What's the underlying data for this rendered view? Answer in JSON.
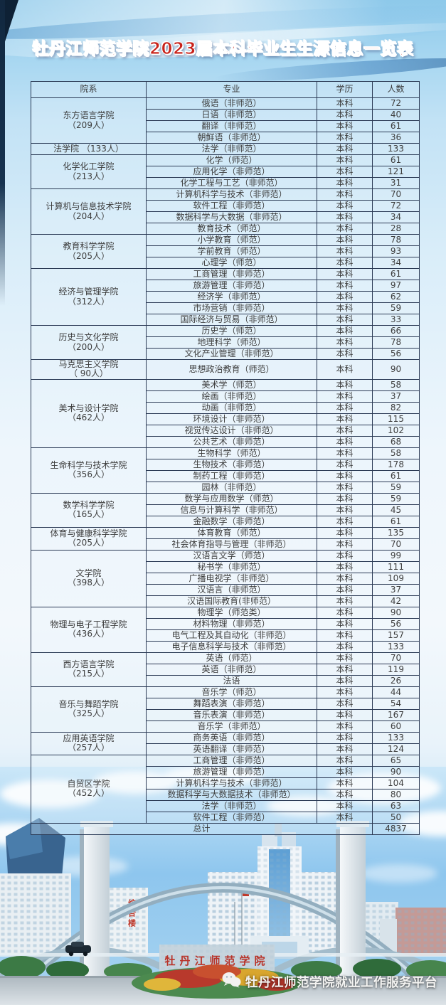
{
  "title": "牡丹江师范学院2023届本科毕业生生源信息一览表",
  "table": {
    "type": "table",
    "columns": [
      "院系",
      "专业",
      "学历",
      "人数"
    ],
    "groups": [
      {
        "dept": "东方语言学院",
        "count": "（209人）",
        "rows": [
          [
            "俄语（非师范）",
            "本科",
            "72"
          ],
          [
            "日语（非师范）",
            "本科",
            "40"
          ],
          [
            "翻译（非师范）",
            "本科",
            "61"
          ],
          [
            "朝鲜语（非师范）",
            "本科",
            "36"
          ]
        ]
      },
      {
        "dept": "法学院 （133人）",
        "count": "",
        "rows": [
          [
            "法学（非师范）",
            "本科",
            "133"
          ]
        ]
      },
      {
        "dept": "化学化工学院",
        "count": "（213人）",
        "rows": [
          [
            "化学（师范）",
            "本科",
            "61"
          ],
          [
            "应用化学（非师范）",
            "本科",
            "121"
          ],
          [
            "化学工程与工艺（非师范）",
            "本科",
            "31"
          ]
        ]
      },
      {
        "dept": "计算机与信息技术学院",
        "count": "（204人）",
        "rows": [
          [
            "计算机科学与技术（非师范）",
            "本科",
            "70"
          ],
          [
            "软件工程（非师范）",
            "本科",
            "72"
          ],
          [
            "数据科学与大数据（非师范）",
            "本科",
            "34"
          ],
          [
            "教育技术（师范）",
            "本科",
            "28"
          ]
        ]
      },
      {
        "dept": "教育科学学院",
        "count": "（205人）",
        "rows": [
          [
            "小学教育（师范）",
            "本科",
            "78"
          ],
          [
            "学前教育（师范）",
            "本科",
            "93"
          ],
          [
            "心理学（师范）",
            "本科",
            "34"
          ]
        ]
      },
      {
        "dept": "经济与管理学院",
        "count": "（312人）",
        "rows": [
          [
            "工商管理（非师范）",
            "本科",
            "61"
          ],
          [
            "旅游管理（非师范）",
            "本科",
            "97"
          ],
          [
            "经济学（非师范）",
            "本科",
            "62"
          ],
          [
            "市场营销（非师范）",
            "本科",
            "59"
          ],
          [
            "国际经济与贸易（非师范）",
            "本科",
            "33"
          ]
        ]
      },
      {
        "dept": "历史与文化学院",
        "count": "（200人）",
        "rows": [
          [
            "历史学（师范）",
            "本科",
            "66"
          ],
          [
            "地理科学（师范）",
            "本科",
            "78"
          ],
          [
            "文化产业管理（非师范）",
            "本科",
            "56"
          ]
        ]
      },
      {
        "dept": "马克思主义学院",
        "count": "（ 90人）",
        "tall": true,
        "rows": [
          [
            "思想政治教育（师范）",
            "本科",
            "90"
          ]
        ]
      },
      {
        "dept": "美术与设计学院",
        "count": "（462人）",
        "rows": [
          [
            "美术学（师范）",
            "本科",
            "58"
          ],
          [
            "绘画（非师范）",
            "本科",
            "37"
          ],
          [
            "动画（非师范）",
            "本科",
            "82"
          ],
          [
            "环境设计（非师范）",
            "本科",
            "115"
          ],
          [
            "视觉传达设计（非师范）",
            "本科",
            "102"
          ],
          [
            "公共艺术（非师范）",
            "本科",
            "68"
          ]
        ]
      },
      {
        "dept": "生命科学与技术学院",
        "count": "（356人）",
        "rows": [
          [
            "生物科学（师范）",
            "本科",
            "58"
          ],
          [
            "生物技术（非师范）",
            "本科",
            "178"
          ],
          [
            "制药工程（非师范）",
            "本科",
            "61"
          ],
          [
            "园林（非师范）",
            "本科",
            "59"
          ]
        ]
      },
      {
        "dept": "数学科学学院",
        "count": "（165人）",
        "rows": [
          [
            "数学与应用数学（师范）",
            "本科",
            "59"
          ],
          [
            "信息与计算科学（非师范）",
            "本科",
            "45"
          ],
          [
            "金融数学（非师范）",
            "本科",
            "61"
          ]
        ]
      },
      {
        "dept": "体育与健康科学学院",
        "count": "（205人）",
        "rows": [
          [
            "体育教育（师范）",
            "本科",
            "135"
          ],
          [
            "社会体育指导与管理（非师范）",
            "本科",
            "70"
          ]
        ]
      },
      {
        "dept": "文学院",
        "count": "（398人）",
        "rows": [
          [
            "汉语言文学（师范）",
            "本科",
            "99"
          ],
          [
            "秘书学（非师范）",
            "本科",
            "111"
          ],
          [
            "广播电视学（非师范）",
            "本科",
            "109"
          ],
          [
            "汉语言（非师范）",
            "本科",
            "37"
          ],
          [
            "汉语国际教育(非师范）",
            "本科",
            "42"
          ]
        ]
      },
      {
        "dept": "物理与电子工程学院",
        "count": "（436人）",
        "rows": [
          [
            "物理学（师范类）",
            "本科",
            "90"
          ],
          [
            "材料物理（非师范）",
            "本科",
            "56"
          ],
          [
            "电气工程及其自动化（非师范）",
            "本科",
            "157"
          ],
          [
            "电子信息科学与技术（非师范）",
            "本科",
            "133"
          ]
        ]
      },
      {
        "dept": "西方语言学院",
        "count": "（215人）",
        "rows": [
          [
            "英语（师范）",
            "本科",
            "70"
          ],
          [
            "英语（非师范）",
            "本科",
            "119"
          ],
          [
            "法语",
            "本科",
            "26"
          ]
        ]
      },
      {
        "dept": "音乐与舞蹈学院",
        "count": "（325人）",
        "rows": [
          [
            "音乐学（师范）",
            "本科",
            "44"
          ],
          [
            "舞蹈表演（非师范）",
            "本科",
            "54"
          ],
          [
            "音乐表演（非师范）",
            "本科",
            "167"
          ],
          [
            "音乐学（非师范）",
            "本科",
            "60"
          ]
        ]
      },
      {
        "dept": "应用英语学院",
        "count": "（257人）",
        "rows": [
          [
            "商务英语（非师范）",
            "本科",
            "133"
          ],
          [
            "英语翻译（非师范）",
            "本科",
            "124"
          ]
        ]
      },
      {
        "dept": "自贸区学院",
        "count": "（452人）",
        "rows": [
          [
            "工商管理（非师范）",
            "本科",
            "65"
          ],
          [
            "旅游管理（非师范）",
            "本科",
            "90"
          ],
          [
            "计算机科学与技术（非师范）",
            "本科",
            "104"
          ],
          [
            "数据科学与大数据技术（非师范）",
            "本科",
            "80"
          ],
          [
            "法学（非师范）",
            "本科",
            "63"
          ],
          [
            "软件工程（非师范）",
            "本科",
            "50"
          ]
        ]
      }
    ],
    "total_label": "总计",
    "total_value": "4837"
  },
  "photo": {
    "gate_sign": "牡丹江师范学院",
    "building_sign": "综合楼"
  },
  "footer": {
    "platform": "牡丹江师范学院就业工作服务平台"
  },
  "colors": {
    "title_red": "#c8221a",
    "table_border": "#2b3a55",
    "sky_blue": "#a8d7f1"
  }
}
